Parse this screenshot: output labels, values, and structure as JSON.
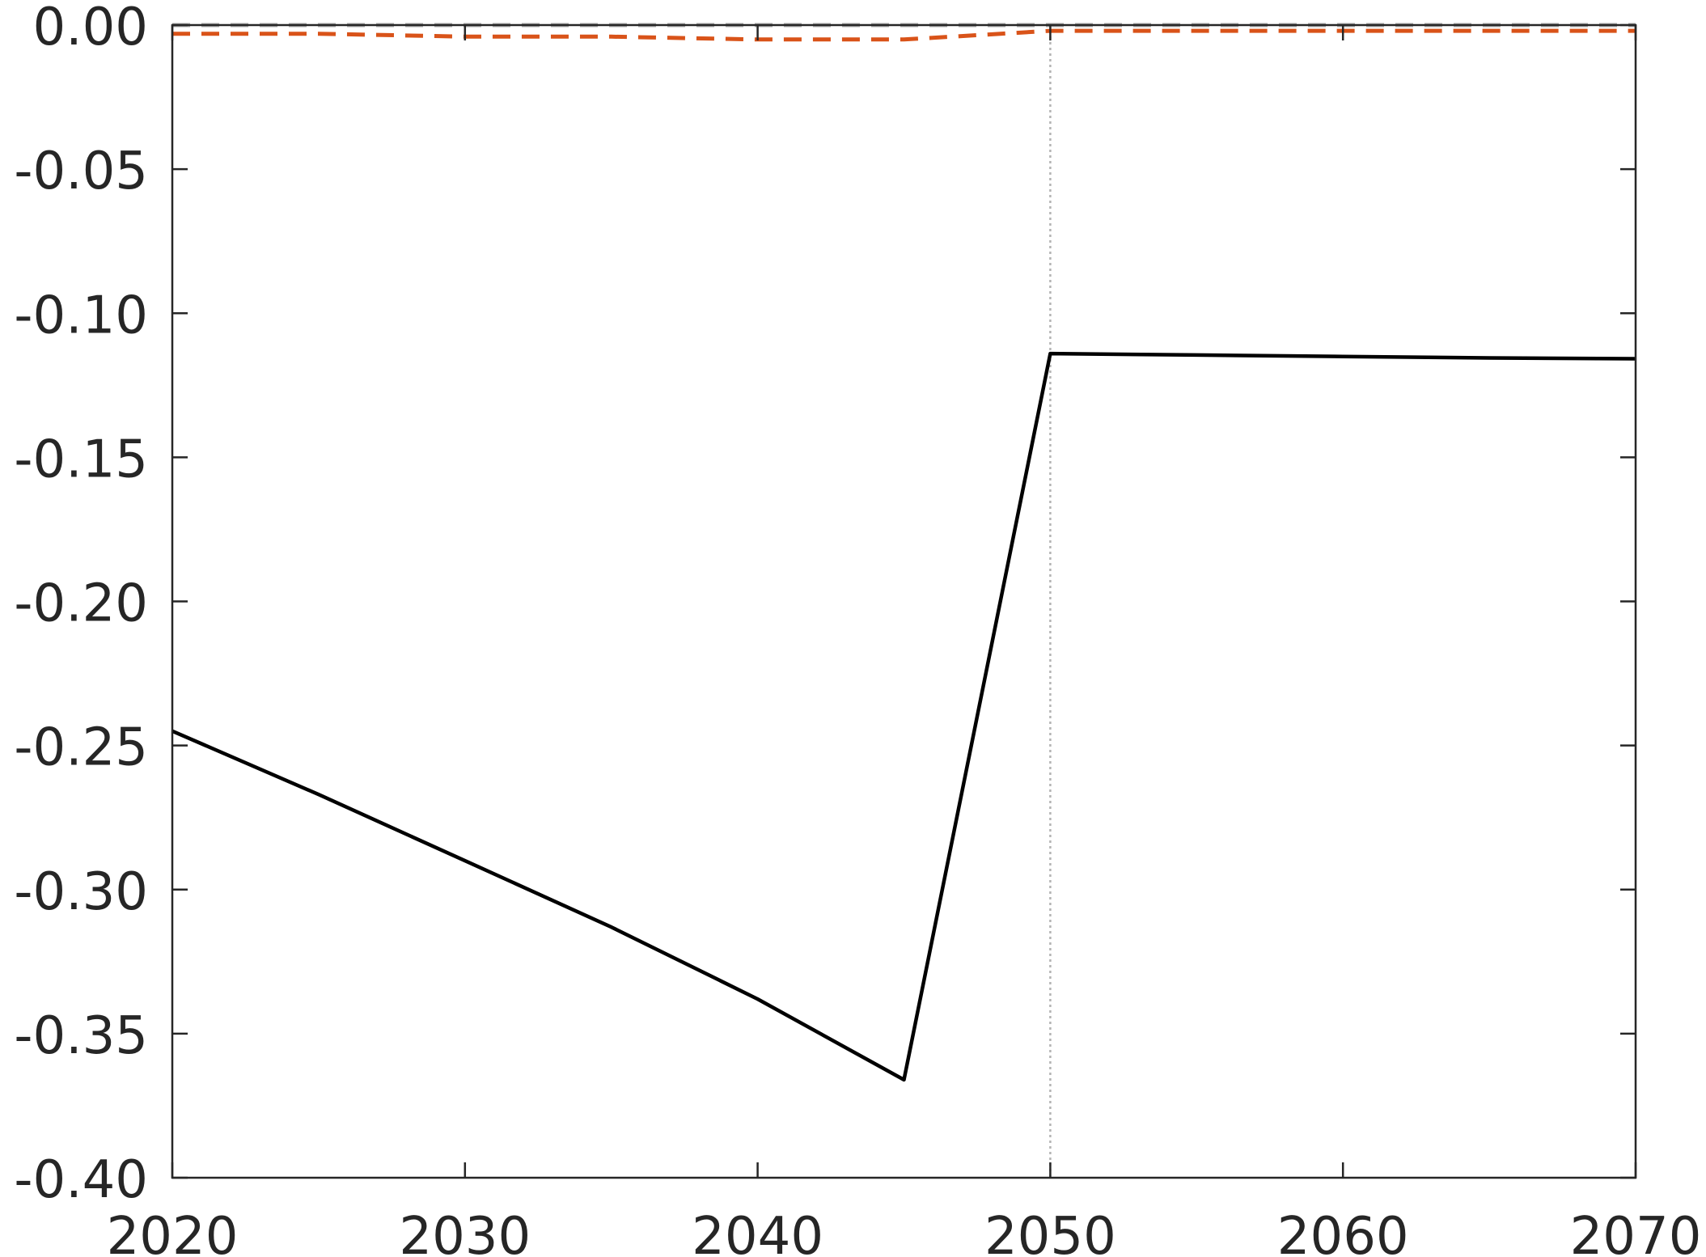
{
  "chart_data": {
    "type": "line",
    "title": "",
    "xlabel": "",
    "ylabel": "",
    "xlim": [
      2020,
      2070
    ],
    "ylim": [
      -0.4,
      0.0
    ],
    "xticks": [
      2020,
      2030,
      2040,
      2050,
      2060,
      2070
    ],
    "xtick_labels": [
      "2020",
      "2030",
      "2040",
      "2050",
      "2060",
      "2070"
    ],
    "yticks": [
      0.0,
      -0.05,
      -0.1,
      -0.15,
      -0.2,
      -0.25,
      -0.3,
      -0.35,
      -0.4
    ],
    "ytick_labels": [
      "0.00",
      "-0.05",
      "-0.10",
      "-0.15",
      "-0.20",
      "-0.25",
      "-0.30",
      "-0.35",
      "-0.40"
    ],
    "grid": false,
    "legend": "none",
    "reference_lines": [
      {
        "axis": "x",
        "value": 2050,
        "color": "#b3b3b3",
        "style": "dotted"
      }
    ],
    "series": [
      {
        "color": "#000000",
        "style": "solid",
        "x": [
          2020,
          2025,
          2030,
          2035,
          2040,
          2045,
          2050,
          2055,
          2060,
          2065,
          2070
        ],
        "y": [
          -0.245,
          -0.267,
          -0.29,
          -0.313,
          -0.338,
          -0.366,
          -0.114,
          -0.1145,
          -0.115,
          -0.1155,
          -0.1158
        ]
      },
      {
        "color": "#d95319",
        "style": "dashed",
        "x": [
          2020,
          2025,
          2030,
          2035,
          2040,
          2045,
          2050,
          2055,
          2060,
          2065,
          2070
        ],
        "y": [
          -0.003,
          -0.003,
          -0.004,
          -0.004,
          -0.005,
          -0.005,
          -0.002,
          -0.002,
          -0.002,
          -0.002,
          -0.002
        ]
      },
      {
        "color": "#a6a6a6",
        "style": "dashed",
        "x": [
          2020,
          2030,
          2040,
          2050,
          2060,
          2070
        ],
        "y": [
          0.0,
          0.0,
          0.0,
          0.0,
          0.0,
          0.0
        ]
      }
    ]
  }
}
